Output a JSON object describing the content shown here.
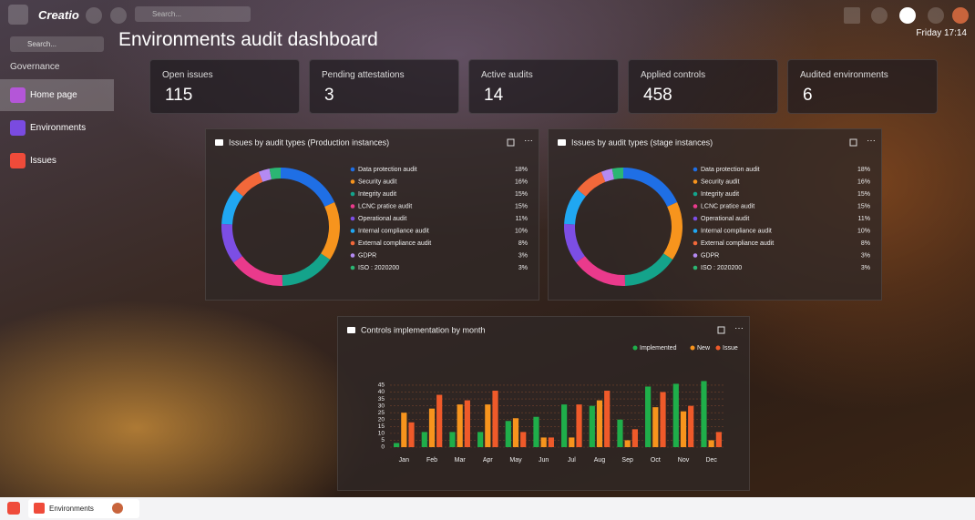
{
  "app": {
    "brand": "Creatio",
    "search_placeholder": "Search...",
    "datetime": "Friday 17:14"
  },
  "sidebar": {
    "search_placeholder": "Search...",
    "section": "Governance",
    "items": [
      "Home page",
      "Environments",
      "Issues"
    ]
  },
  "title": "Environments audit dashboard",
  "kpis": [
    {
      "label": "Open issues",
      "value": 115
    },
    {
      "label": "Pending attestations",
      "value": 3
    },
    {
      "label": "Active audits",
      "value": 14
    },
    {
      "label": "Applied controls",
      "value": 458
    },
    {
      "label": "Audited environments",
      "value": 6
    }
  ],
  "chart_data": [
    {
      "type": "donut",
      "title": "Issues by audit types (Production instances)",
      "categories": [
        "Data protection audit",
        "Security audit",
        "Integrity audit",
        "LCNC pratice audit",
        "Operational audit",
        "Internal compliance audit",
        "External compliance audit",
        "GDPR",
        "ISO : 2020200"
      ],
      "values": [
        18,
        16,
        15,
        15,
        11,
        10,
        8,
        3,
        3
      ],
      "value_labels": [
        "18%",
        "16%",
        "15%",
        "15%",
        "11%",
        "10%",
        "8%",
        "3%",
        "3%"
      ],
      "colors": [
        "#1f6fe5",
        "#f7941d",
        "#14a38b",
        "#ea3a8c",
        "#7c4ee4",
        "#20a7f2",
        "#f2683a",
        "#b48af2",
        "#2bb673"
      ]
    },
    {
      "type": "donut",
      "title": "Issues by audit types (stage instances)",
      "categories": [
        "Data protection audit",
        "Security audit",
        "Integrity audit",
        "LCNC pratice audit",
        "Operational audit",
        "Internal compliance audit",
        "External compliance audit",
        "GDPR",
        "ISO : 2020200"
      ],
      "values": [
        18,
        16,
        15,
        15,
        11,
        10,
        8,
        3,
        3
      ],
      "value_labels": [
        "18%",
        "16%",
        "15%",
        "15%",
        "11%",
        "10%",
        "8%",
        "3%",
        "3%"
      ],
      "colors": [
        "#1f6fe5",
        "#f7941d",
        "#14a38b",
        "#ea3a8c",
        "#7c4ee4",
        "#20a7f2",
        "#f2683a",
        "#b48af2",
        "#2bb673"
      ]
    },
    {
      "type": "bar",
      "title": "Controls implementation by month",
      "categories": [
        "Jan",
        "Feb",
        "Mar",
        "Apr",
        "May",
        "Jun",
        "Jul",
        "Aug",
        "Sep",
        "Oct",
        "Nov",
        "Dec"
      ],
      "series": [
        {
          "name": "Implemented",
          "color": "#1fae4a",
          "values": [
            3,
            11,
            11,
            11,
            19,
            22,
            31,
            30,
            20,
            44,
            46,
            48
          ]
        },
        {
          "name": "New",
          "color": "#f7941d",
          "values": [
            25,
            28,
            31,
            31,
            21,
            7,
            7,
            34,
            5,
            29,
            26,
            5
          ]
        },
        {
          "name": "Issue",
          "color": "#ef5a2a",
          "values": [
            18,
            38,
            34,
            41,
            11,
            7,
            31,
            41,
            13,
            40,
            30,
            11
          ]
        }
      ],
      "ylim": [
        0,
        50
      ],
      "yticks": [
        0,
        5,
        10,
        15,
        20,
        25,
        30,
        35,
        40,
        45
      ],
      "grid": true
    }
  ],
  "taskbar": {
    "tab": "Environments"
  }
}
